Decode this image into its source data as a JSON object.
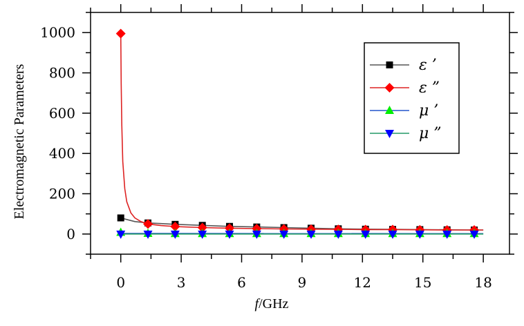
{
  "chart_data": {
    "type": "line",
    "xlabel": "f/GHz",
    "ylabel": "Electromagnetic Parameters",
    "xlim": [
      -1.5,
      19.3
    ],
    "ylim": [
      -100,
      1100
    ],
    "xticks": [
      0,
      3,
      6,
      9,
      12,
      15,
      18
    ],
    "yticks": [
      0,
      200,
      400,
      600,
      800,
      1000
    ],
    "grid": false,
    "legend_position": "top-right",
    "series": [
      {
        "name": "ε ’",
        "color": "#000000",
        "line_color": "#555555",
        "marker": "square",
        "curve_x": [
          0.0,
          0.3,
          0.7,
          1.35,
          2.0,
          2.7,
          4.05,
          5.4,
          6.75,
          8.1,
          9.45,
          10.8,
          12.15,
          13.5,
          14.85,
          16.2,
          17.55,
          18.0
        ],
        "curve_y": [
          80,
          72,
          62,
          55,
          52,
          48,
          43,
          38,
          35,
          32,
          29,
          26,
          24,
          23,
          22,
          21,
          20,
          20
        ],
        "marker_x": [
          0.0,
          1.35,
          2.7,
          4.05,
          5.4,
          6.75,
          8.1,
          9.45,
          10.8,
          12.15,
          13.5,
          14.85,
          16.2,
          17.55
        ],
        "marker_y": [
          80,
          55,
          48,
          43,
          38,
          35,
          32,
          29,
          26,
          24,
          23,
          22,
          21,
          20
        ]
      },
      {
        "name": "ε ”",
        "color": "#ff0000",
        "line_color": "#dd2222",
        "marker": "diamond",
        "curve_x": [
          0.0,
          0.02,
          0.05,
          0.1,
          0.2,
          0.3,
          0.5,
          0.7,
          1.0,
          1.35,
          2.0,
          2.7,
          4.05,
          5.4,
          6.75,
          8.1,
          9.45,
          10.8,
          12.15,
          13.5,
          14.85,
          16.2,
          17.55,
          18.0
        ],
        "curve_y": [
          995,
          750,
          540,
          360,
          225,
          160,
          105,
          80,
          62,
          50,
          42,
          37,
          32,
          29,
          27,
          25,
          24,
          23,
          22,
          22,
          21,
          20,
          20,
          20
        ],
        "marker_x": [
          0.0,
          1.35,
          2.7,
          4.05,
          5.4,
          6.75,
          8.1,
          9.45,
          10.8,
          12.15,
          13.5,
          14.85,
          16.2,
          17.55
        ],
        "marker_y": [
          995,
          50,
          37,
          32,
          29,
          27,
          25,
          24,
          23,
          22,
          22,
          21,
          20,
          20
        ]
      },
      {
        "name": "μ ’",
        "color": "#00ee00",
        "line_color": "#2255cc",
        "marker": "triangle-up",
        "curve_x": [
          0.0,
          18.0
        ],
        "curve_y": [
          3,
          2
        ],
        "marker_x": [
          0.0,
          1.35,
          2.7,
          4.05,
          5.4,
          6.75,
          8.1,
          9.45,
          10.8,
          12.15,
          13.5,
          14.85,
          16.2,
          17.55
        ],
        "marker_y": [
          8,
          3,
          2,
          2,
          2,
          2,
          2,
          2,
          2,
          2,
          2,
          2,
          2,
          2
        ]
      },
      {
        "name": "μ ”",
        "color": "#0000ff",
        "line_color": "#229966",
        "marker": "triangle-down",
        "curve_x": [
          0.0,
          18.0
        ],
        "curve_y": [
          0,
          0
        ],
        "marker_x": [
          0.0,
          1.35,
          2.7,
          4.05,
          5.4,
          6.75,
          8.1,
          9.45,
          10.8,
          12.15,
          13.5,
          14.85,
          16.2,
          17.55
        ],
        "marker_y": [
          0,
          0,
          0,
          0,
          0,
          0,
          0,
          0,
          0,
          0,
          0,
          0,
          0,
          0
        ]
      }
    ]
  }
}
